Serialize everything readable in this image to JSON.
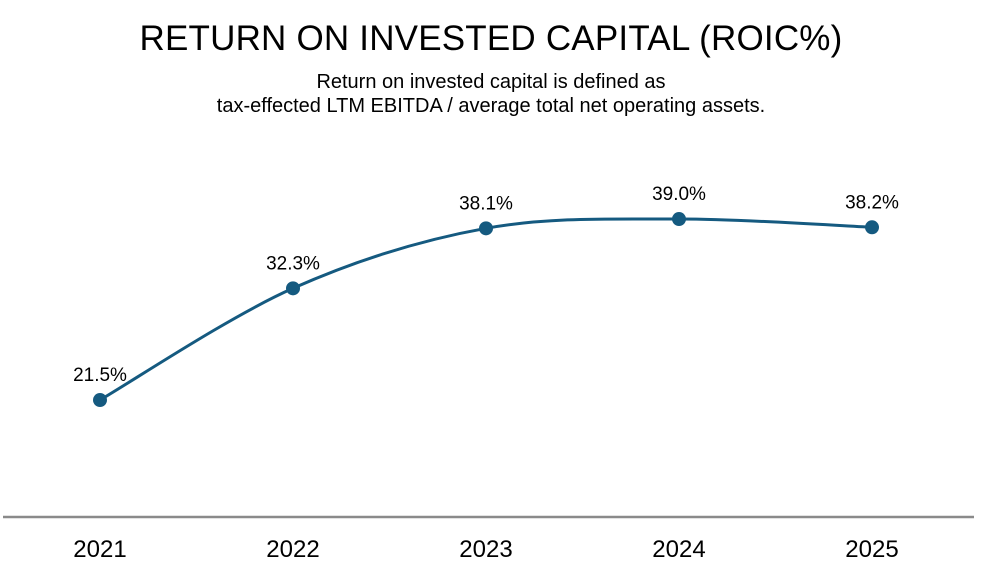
{
  "header": {
    "title": "RETURN ON INVESTED CAPITAL (ROIC%)",
    "subtitle_line1": "Return on invested capital is defined as",
    "subtitle_line2": "tax-effected LTM EBITDA / average total net operating assets."
  },
  "chart_data": {
    "type": "line",
    "title": "RETURN ON INVESTED CAPITAL (ROIC%)",
    "subtitle": "Return on invested capital is defined as tax-effected LTM EBITDA / average total net operating assets.",
    "categories": [
      "2021",
      "2022",
      "2023",
      "2024",
      "2025"
    ],
    "values": [
      21.5,
      32.3,
      38.1,
      39.0,
      38.2
    ],
    "data_labels": [
      "21.5%",
      "32.3%",
      "38.1%",
      "39.0%",
      "38.2%"
    ],
    "xlabel": "",
    "ylabel": "",
    "grid": false,
    "legend": false,
    "marker": "circle",
    "line_color": "#155A80",
    "marker_color": "#155A80",
    "axis_line_color": "#8A8A8A",
    "label_color": "#000000",
    "tick_color": "#000000"
  }
}
